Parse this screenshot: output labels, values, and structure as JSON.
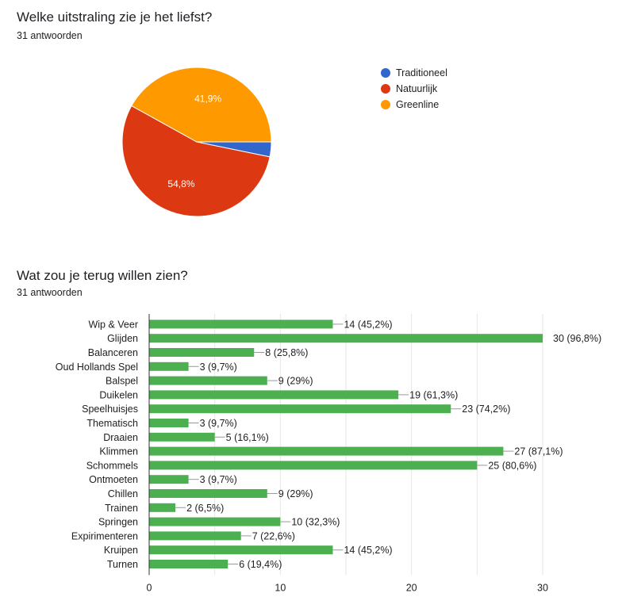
{
  "question1": {
    "title": "Welke uitstraling zie je het liefst?",
    "responses": "31 antwoorden"
  },
  "question2": {
    "title": "Wat zou je terug willen zien?",
    "responses": "31 antwoorden"
  },
  "chart_data": [
    {
      "type": "pie",
      "title": "Welke uitstraling zie je het liefst?",
      "slices": [
        {
          "name": "Traditioneel",
          "value": 1,
          "percent": 3.2,
          "label": "",
          "color": "#3366cc"
        },
        {
          "name": "Natuurlijk",
          "value": 17,
          "percent": 54.8,
          "label": "54,8%",
          "color": "#dc3912"
        },
        {
          "name": "Greenline",
          "value": 13,
          "percent": 41.9,
          "label": "41,9%",
          "color": "#ff9900"
        }
      ],
      "legend": "right"
    },
    {
      "type": "bar",
      "orientation": "horizontal",
      "title": "Wat zou je terug willen zien?",
      "bar_color": "#4caf50",
      "categories": [
        "Wip & Veer",
        "Glijden",
        "Balanceren",
        "Oud Hollands Spel",
        "Balspel",
        "Duikelen",
        "Speelhuisjes",
        "Thematisch",
        "Draaien",
        "Klimmen",
        "Schommels",
        "Ontmoeten",
        "Chillen",
        "Trainen",
        "Springen",
        "Expirimenteren",
        "Kruipen",
        "Turnen"
      ],
      "values": [
        14,
        30,
        8,
        3,
        9,
        19,
        23,
        3,
        5,
        27,
        25,
        3,
        9,
        2,
        10,
        7,
        14,
        6
      ],
      "data_labels": [
        "14 (45,2%)",
        "30 (96,8%)",
        "8 (25,8%)",
        "3 (9,7%)",
        "9 (29%)",
        "19 (61,3%)",
        "23 (74,2%)",
        "3 (9,7%)",
        "5 (16,1%)",
        "27 (87,1%)",
        "25 (80,6%)",
        "3 (9,7%)",
        "9 (29%)",
        "2 (6,5%)",
        "10 (32,3%)",
        "7 (22,6%)",
        "14 (45,2%)",
        "6 (19,4%)"
      ],
      "xlim": [
        0,
        30
      ],
      "x_ticks": [
        "0",
        "10",
        "20",
        "30"
      ],
      "grid": true
    }
  ]
}
